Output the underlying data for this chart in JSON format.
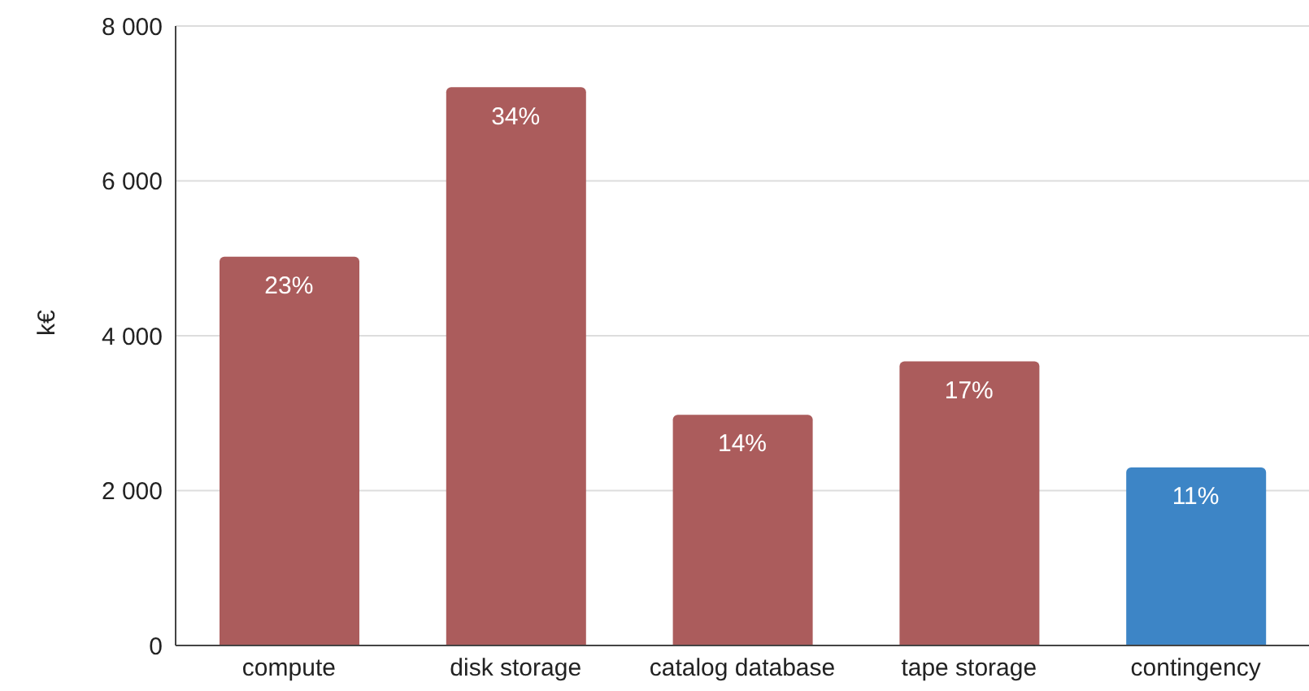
{
  "chart_data": {
    "type": "bar",
    "ylabel": "k€",
    "categories": [
      "compute",
      "disk storage",
      "catalog database",
      "tape storage",
      "contingency"
    ],
    "values": [
      5020,
      7210,
      2980,
      3670,
      2300
    ],
    "colors": [
      "#ab5c5c",
      "#ab5c5c",
      "#ab5c5c",
      "#ab5c5c",
      "#3d85c6"
    ],
    "annotations": [
      {
        "text": "23%",
        "x": "compute",
        "y": 5020
      },
      {
        "text": "34%",
        "x": "disk storage",
        "y": 7210
      },
      {
        "text": "14%",
        "x": "catalog database",
        "y": 2980
      },
      {
        "text": "17%",
        "x": "tape storage",
        "y": 3670
      },
      {
        "text": "11%",
        "x": "contingency",
        "y": 2300
      }
    ],
    "ylim": [
      0,
      8000
    ],
    "yticks": [
      {
        "value": 0,
        "label": "0"
      },
      {
        "value": 2000,
        "label": "2 000"
      },
      {
        "value": 4000,
        "label": "4 000"
      },
      {
        "value": 6000,
        "label": "6 000"
      },
      {
        "value": 8000,
        "label": "8 000"
      }
    ],
    "grid": "y"
  }
}
